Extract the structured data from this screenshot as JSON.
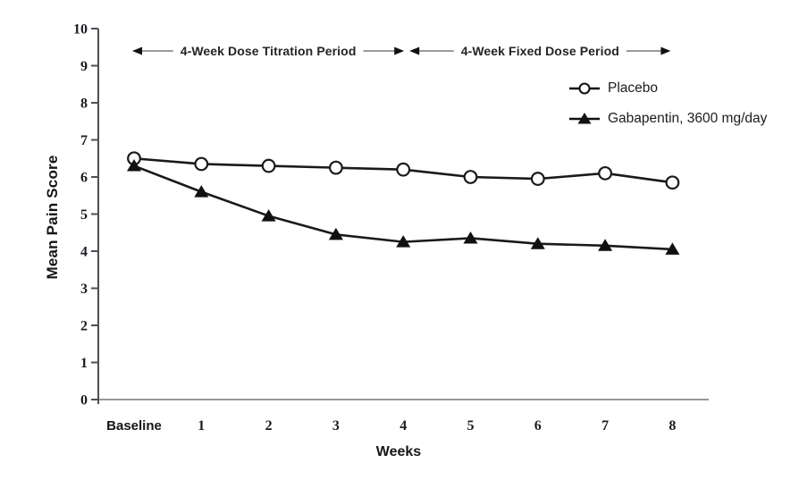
{
  "figure": {
    "ylabel": "Mean Pain Score",
    "xlabel": "Weeks"
  },
  "legend": {
    "position": "upper-right",
    "items": [
      {
        "label": "Placebo",
        "marker": "open-circle"
      },
      {
        "label": "Gabapentin, 3600 mg/day",
        "marker": "filled-triangle"
      }
    ]
  },
  "chart_data": {
    "type": "line",
    "categories": [
      "Baseline",
      "1",
      "2",
      "3",
      "4",
      "5",
      "6",
      "7",
      "8"
    ],
    "series": [
      {
        "name": "Placebo",
        "marker": "open-circle",
        "values": [
          6.5,
          6.35,
          6.3,
          6.25,
          6.2,
          6.0,
          5.95,
          6.1,
          5.85
        ]
      },
      {
        "name": "Gabapentin, 3600 mg/day",
        "marker": "filled-triangle",
        "values": [
          6.3,
          5.6,
          4.95,
          4.45,
          4.25,
          4.35,
          4.2,
          4.15,
          4.05
        ]
      }
    ],
    "title": "",
    "xlabel": "Weeks",
    "ylabel": "Mean Pain Score",
    "ylim": [
      0,
      10
    ],
    "yticks": [
      0,
      1,
      2,
      3,
      4,
      5,
      6,
      7,
      8,
      9,
      10
    ],
    "grid": false,
    "legend_position": "upper-right",
    "annotations": [
      {
        "text": "4-Week Dose Titration Period",
        "span_weeks": [
          0,
          4
        ]
      },
      {
        "text": "4-Week Fixed Dose Period",
        "span_weeks": [
          4,
          8
        ]
      }
    ],
    "colors": {
      "series_line": "#1a1a1a",
      "marker_fill": "#111111",
      "open_marker_fill": "#ffffff",
      "axis_x": "#979797",
      "axis_y": "#4f4f4f",
      "annotation_line": "#7a7a7a",
      "arrowhead": "#111111",
      "text": "#1b1b24"
    }
  }
}
